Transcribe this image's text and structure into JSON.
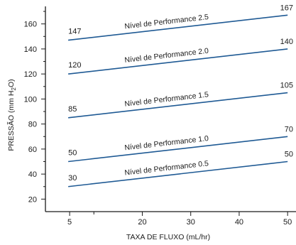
{
  "chart_data": {
    "type": "line",
    "xlabel": "TAXA DE FLUXO (mL/hr)",
    "ylabel_main": "PRESSÃO  (mm H",
    "ylabel_sub": "2",
    "ylabel_end": "O)",
    "x_ticks": [
      5,
      20,
      30,
      40,
      50
    ],
    "x_tick_labels": [
      "5",
      "20",
      "30",
      "40",
      "50"
    ],
    "x_minor_ticks": [
      10
    ],
    "y_ticks": [
      20,
      40,
      60,
      80,
      100,
      120,
      140,
      160
    ],
    "y_tick_labels": [
      "20",
      "40",
      "60",
      "80",
      "100",
      "120",
      "140",
      "160"
    ],
    "y_minor_ticks": [
      30,
      50,
      70,
      90,
      110,
      130,
      150,
      170
    ],
    "xlim": [
      0,
      51
    ],
    "ylim": [
      10,
      174
    ],
    "grid": false,
    "color": "#1f5a94",
    "series": [
      {
        "name": "Nível de Performance 0.5",
        "x": [
          5,
          50
        ],
        "values": [
          30,
          50
        ],
        "start_label": "30",
        "end_label": "50"
      },
      {
        "name": "Nível de Performance 1.0",
        "x": [
          5,
          50
        ],
        "values": [
          50,
          70
        ],
        "start_label": "50",
        "end_label": "70"
      },
      {
        "name": "Nível de Performance 1.5",
        "x": [
          5,
          50
        ],
        "values": [
          85,
          105
        ],
        "start_label": "85",
        "end_label": "105"
      },
      {
        "name": "Nível de Performance 2.0",
        "x": [
          5,
          50
        ],
        "values": [
          120,
          140
        ],
        "start_label": "120",
        "end_label": "140"
      },
      {
        "name": "Nível de Performance 2.5",
        "x": [
          5,
          50
        ],
        "values": [
          147,
          167
        ],
        "start_label": "147",
        "end_label": "167"
      }
    ]
  }
}
